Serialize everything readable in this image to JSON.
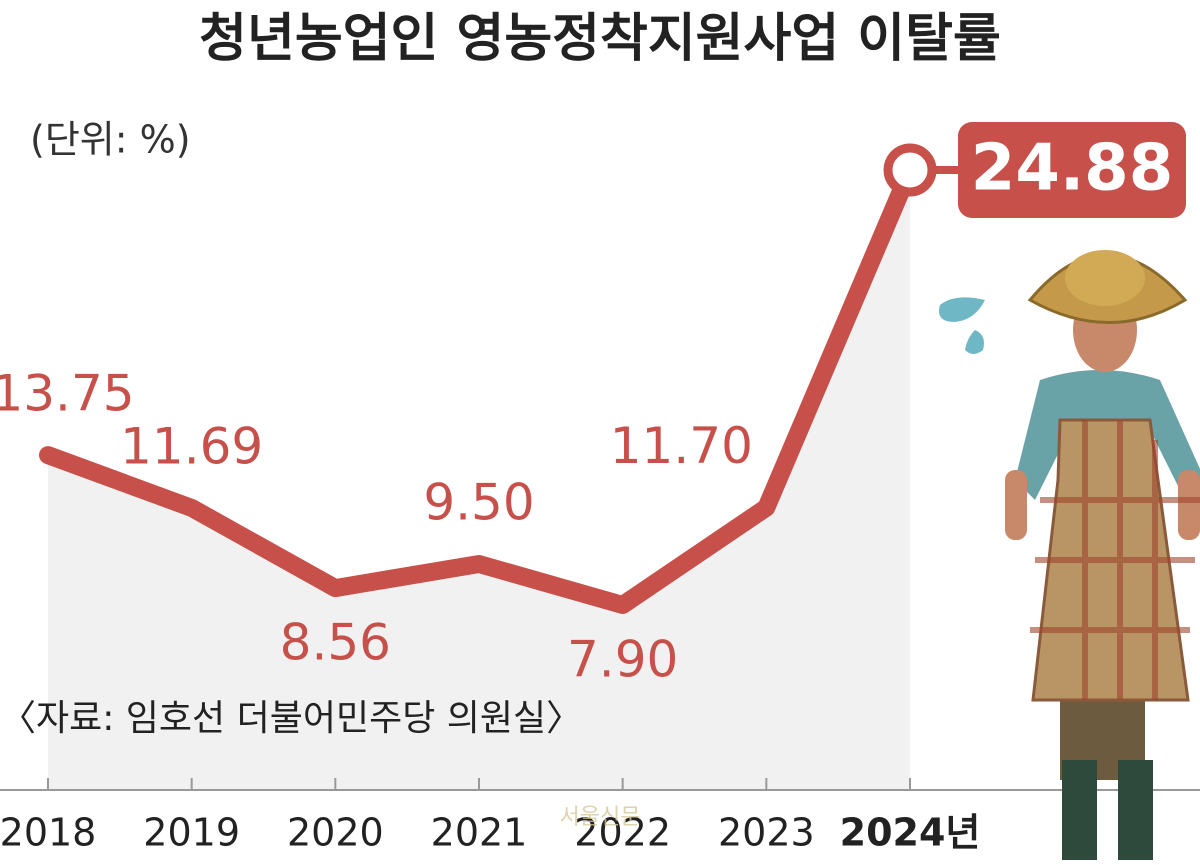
{
  "chart_data": {
    "type": "line",
    "title": "청년농업인 영농정착지원사업 이탈률",
    "subtitle": "(단위: %)",
    "source": "〈자료: 임호선 더불어민주당 의원실〉",
    "watermark": "서울신문",
    "categories": [
      "2018",
      "2019",
      "2020",
      "2021",
      "2022",
      "2023",
      "2024년"
    ],
    "values": [
      13.75,
      11.69,
      8.56,
      9.5,
      7.9,
      11.7,
      24.88
    ],
    "value_labels": [
      "13.75",
      "11.69",
      "8.56",
      "9.50",
      "7.90",
      "11.70",
      "24.88"
    ],
    "color": "#c8504a"
  }
}
